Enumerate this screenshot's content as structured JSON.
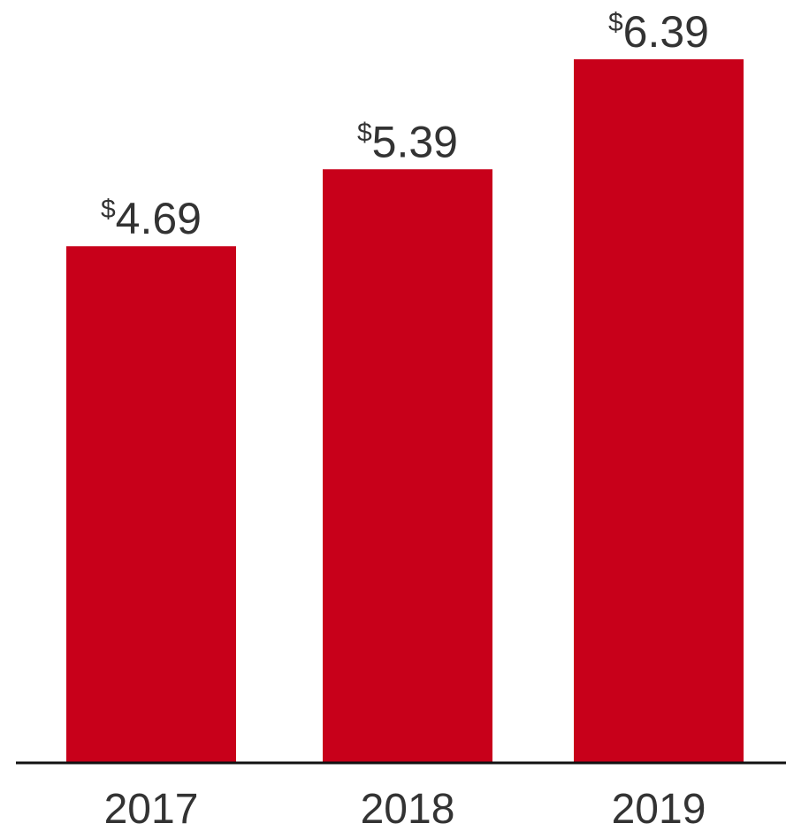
{
  "chart_data": {
    "type": "bar",
    "categories": [
      "2017",
      "2018",
      "2019"
    ],
    "values": [
      4.69,
      5.39,
      6.39
    ],
    "value_labels": [
      {
        "prefix": "$",
        "text": "4.69"
      },
      {
        "prefix": "$",
        "text": "5.39"
      },
      {
        "prefix": "$",
        "text": "6.39"
      }
    ],
    "title": "",
    "xlabel": "",
    "ylabel": "",
    "ylim": [
      0,
      6.39
    ],
    "grid": false,
    "legend": "none",
    "colors": {
      "bar": "#C8001A",
      "axis": "#111111",
      "text": "#333333"
    }
  }
}
